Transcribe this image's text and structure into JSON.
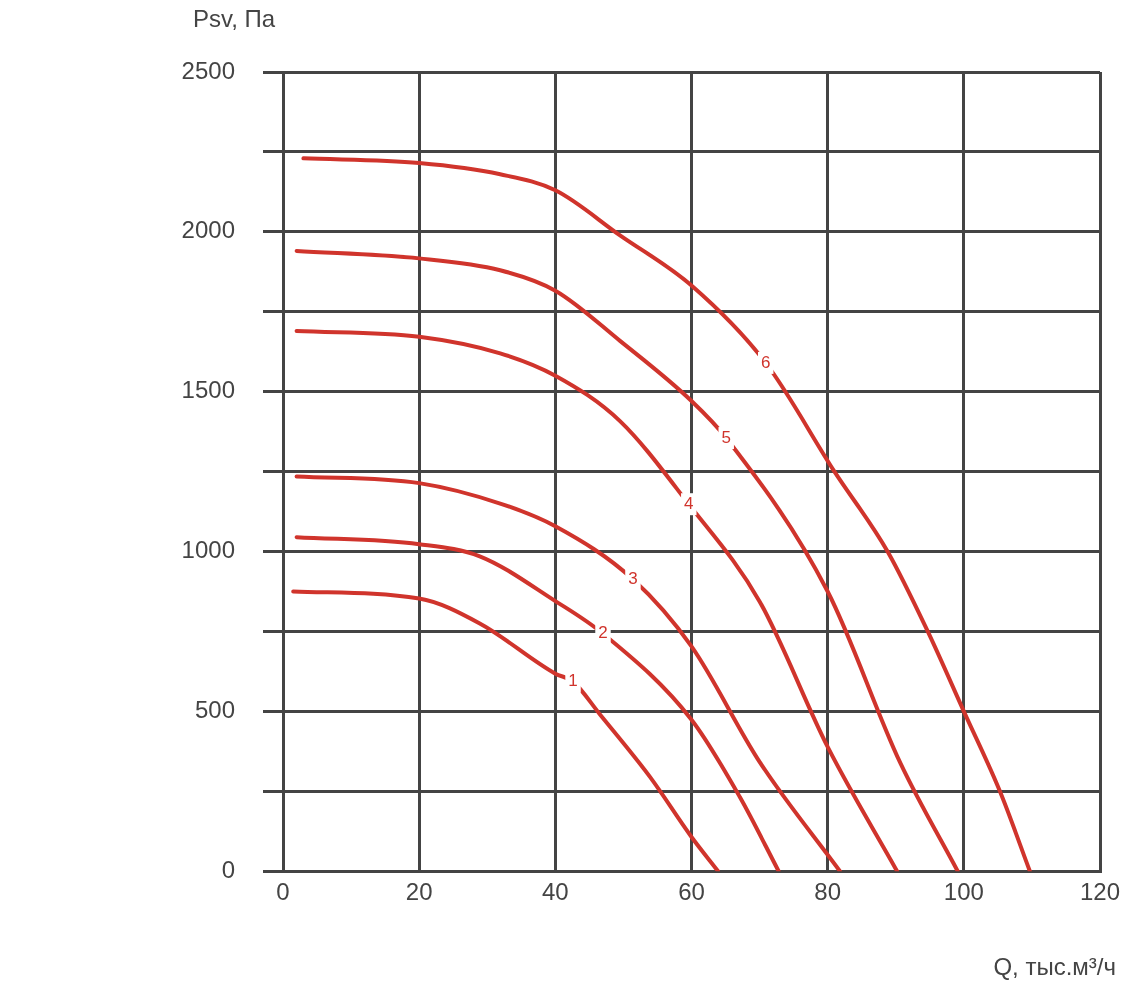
{
  "chart_data": {
    "type": "line",
    "xlabel": "Q, тыс.м³/ч",
    "ylabel": "Psv, Па",
    "xlim": [
      0,
      120
    ],
    "xticks": [
      0,
      20,
      40,
      60,
      80,
      100,
      120
    ],
    "ylim": [
      0,
      2500
    ],
    "yticks": [
      0,
      {
        "value": 250,
        "label": null
      },
      500,
      {
        "value": 750,
        "label": null
      },
      1000,
      {
        "value": 1250,
        "label": null
      },
      1500,
      {
        "value": 1750,
        "label": null
      },
      2000,
      {
        "value": 2250,
        "label": null
      },
      2500
    ],
    "grid": true,
    "legend": false,
    "marker": "none",
    "line_style": "solid",
    "series": [
      {
        "name": "1",
        "color": "#d0342c",
        "x": [
          1.5,
          20,
          28.9,
          40,
          42.6,
          46.5,
          53.9,
          60,
          63.9
        ],
        "values": [
          875,
          853,
          775,
          618,
          593,
          492,
          295,
          107,
          0
        ]
      },
      {
        "name": "2",
        "color": "#d0342c",
        "x": [
          2,
          20,
          28.9,
          40,
          47,
          60,
          67.1,
          72.8
        ],
        "values": [
          1045,
          1023,
          985,
          845,
          743,
          474,
          232,
          0
        ]
      },
      {
        "name": "3",
        "color": "#d0342c",
        "x": [
          2,
          20,
          31.9,
          40,
          51.4,
          60,
          70,
          81.8
        ],
        "values": [
          1235,
          1214,
          1150,
          1079,
          913,
          703,
          342,
          0
        ]
      },
      {
        "name": "4",
        "color": "#d0342c",
        "x": [
          2,
          20,
          31.9,
          40,
          49.5,
          59.6,
          70,
          80,
          90.2
        ],
        "values": [
          1690,
          1672,
          1620,
          1550,
          1408,
          1148,
          844,
          389,
          0
        ]
      },
      {
        "name": "5",
        "color": "#d0342c",
        "x": [
          2,
          20,
          31.9,
          40,
          49.5,
          60,
          65.1,
          80,
          90.6,
          99.1
        ],
        "values": [
          1940,
          1917,
          1880,
          1816,
          1659,
          1471,
          1355,
          875,
          342,
          0
        ]
      },
      {
        "name": "6",
        "color": "#d0342c",
        "x": [
          3,
          20,
          31.9,
          40,
          49.5,
          60,
          70.9,
          81,
          88.8,
          94.7,
          100,
          105.3,
          109.7
        ],
        "values": [
          2230,
          2215,
          2180,
          2130,
          1989,
          1832,
          1590,
          1250,
          1000,
          750,
          500,
          250,
          0
        ]
      }
    ]
  }
}
